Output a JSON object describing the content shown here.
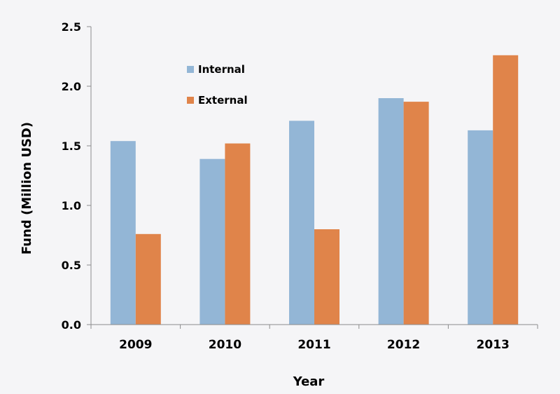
{
  "chart_data": {
    "type": "bar",
    "title": "",
    "xlabel": "Year",
    "ylabel": "Fund (Million USD)",
    "categories": [
      "2009",
      "2010",
      "2011",
      "2012",
      "2013"
    ],
    "ylim": [
      0,
      2.5
    ],
    "yticks": [
      "0.0",
      "0.5",
      "1.0",
      "1.5",
      "2.0",
      "2.5"
    ],
    "ytick_values": [
      0,
      0.5,
      1.0,
      1.5,
      2.0,
      2.5
    ],
    "grid": false,
    "legend_position": "top-left",
    "series": [
      {
        "name": "Internal",
        "color": "#93b6d6",
        "values": [
          1.54,
          1.39,
          1.71,
          1.9,
          1.63
        ]
      },
      {
        "name": "External",
        "color": "#e0844a",
        "values": [
          0.76,
          1.52,
          0.8,
          1.87,
          2.26
        ]
      }
    ]
  }
}
